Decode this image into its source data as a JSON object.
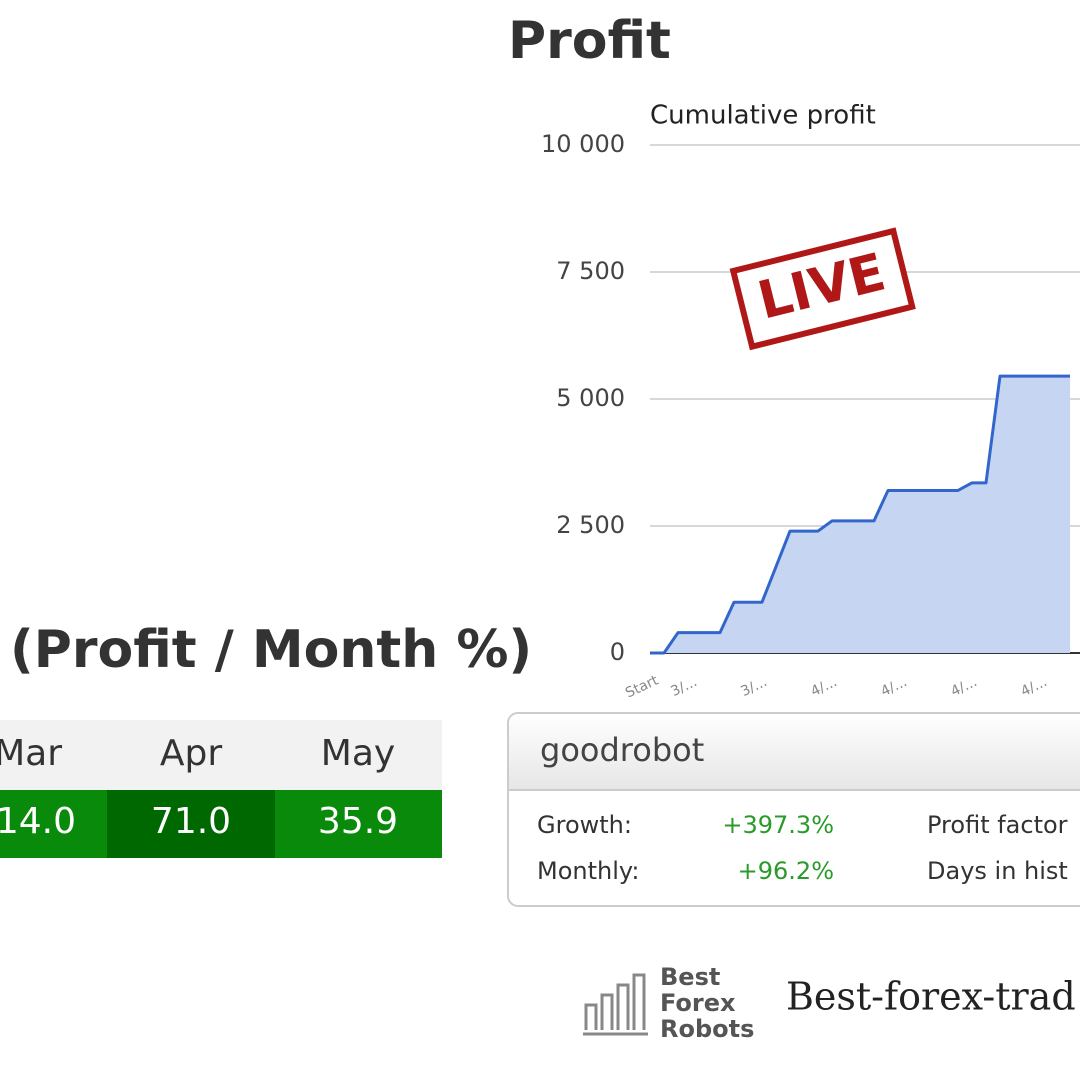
{
  "heading": "Profit",
  "chart_data": {
    "type": "area",
    "title": "Cumulative profit",
    "categories": [
      "Start",
      null,
      null,
      "3/...",
      null,
      null,
      null,
      null,
      "3/...",
      null,
      null,
      null,
      null,
      "4/...",
      null,
      null,
      null,
      null,
      "4/...",
      null,
      null,
      null,
      null,
      "4/...",
      null,
      null,
      null,
      null,
      "4/...",
      null,
      null
    ],
    "values": [
      0,
      0,
      400,
      400,
      400,
      400,
      1000,
      1000,
      1000,
      1700,
      2400,
      2400,
      2400,
      2600,
      2600,
      2600,
      2600,
      3200,
      3200,
      3200,
      3200,
      3200,
      3200,
      3350,
      3350,
      5450,
      5450,
      5450,
      5450,
      5450,
      5450
    ],
    "color": "#3366cc",
    "fill": "#c6d6f2",
    "ylim": [
      0,
      10000
    ],
    "yticks": [
      0,
      {
        "value": 2500,
        "label": "2 500"
      },
      {
        "value": 5000,
        "label": "5 000"
      },
      {
        "value": 7500,
        "label": "7 500"
      },
      {
        "value": 10000,
        "label": "10 000"
      }
    ],
    "grid": true
  },
  "stamp": "LIVE",
  "monthly": {
    "title": "(Profit / Month %)",
    "header": [
      "Mar",
      "Apr",
      "May"
    ],
    "values": [
      "14.0",
      "71.0",
      "35.9"
    ]
  },
  "card": {
    "name": "goodrobot",
    "rows": [
      {
        "label": "Growth:",
        "value": "+397.3%",
        "label2": "Profit factor"
      },
      {
        "label": "Monthly:",
        "value": "+96.2%",
        "label2": "Days in hist"
      }
    ]
  },
  "logo": {
    "lines": [
      "Best",
      "Forex",
      "Robots"
    ],
    "site": "Best-forex-trad"
  }
}
